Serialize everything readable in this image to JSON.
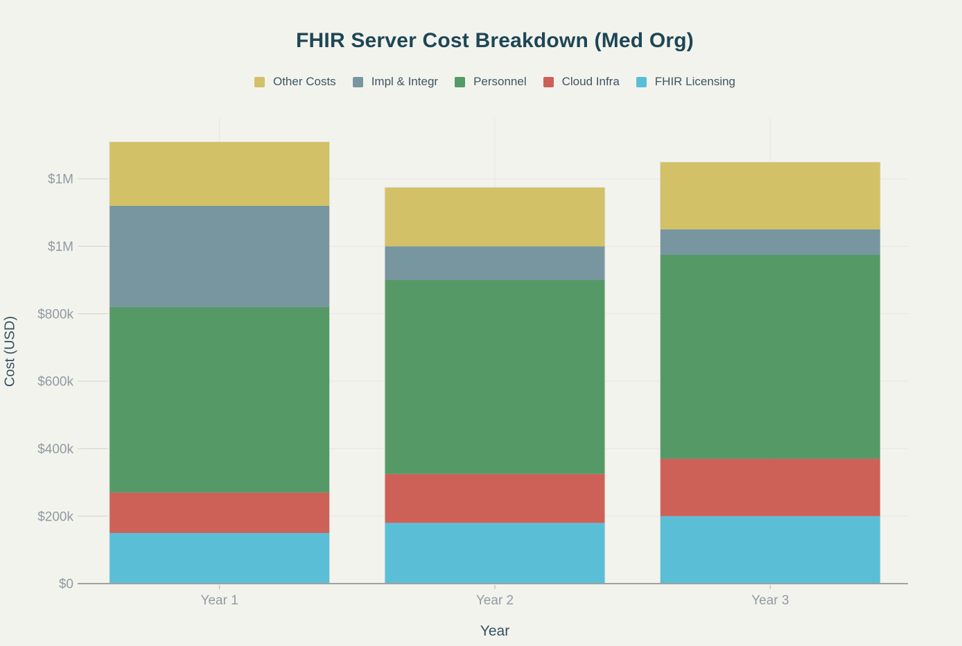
{
  "chart_data": {
    "type": "bar",
    "stacked": true,
    "title": "FHIR Server Cost Breakdown (Med Org)",
    "xlabel": "Year",
    "ylabel": "Cost (USD)",
    "categories": [
      "Year 1",
      "Year 2",
      "Year 3"
    ],
    "series": [
      {
        "name": "FHIR Licensing",
        "color": "#5abfd6",
        "values": [
          150000,
          180000,
          200000
        ]
      },
      {
        "name": "Cloud Infra",
        "color": "#cd6158",
        "values": [
          120000,
          145000,
          170000
        ]
      },
      {
        "name": "Personnel",
        "color": "#559967",
        "values": [
          550000,
          575000,
          605000
        ]
      },
      {
        "name": "Impl & Integr",
        "color": "#7896a0",
        "values": [
          300000,
          100000,
          75000
        ]
      },
      {
        "name": "Other Costs",
        "color": "#d2c166",
        "values": [
          190000,
          175000,
          200000
        ]
      }
    ],
    "stack_order": "bottom-to-top",
    "totals": [
      1310000,
      1175000,
      1250000
    ],
    "legend": {
      "position": "top",
      "order": [
        "Other Costs",
        "Impl & Integr",
        "Personnel",
        "Cloud Infra",
        "FHIR Licensing"
      ]
    },
    "y_axis": {
      "ticks": [
        {
          "value": 0,
          "label": "$0"
        },
        {
          "value": 200000,
          "label": "$200k"
        },
        {
          "value": 400000,
          "label": "$400k"
        },
        {
          "value": 600000,
          "label": "$600k"
        },
        {
          "value": 800000,
          "label": "$800k"
        },
        {
          "value": 1000000,
          "label": "$1M"
        },
        {
          "value": 1200000,
          "label": "$1M"
        }
      ],
      "ylim": [
        0,
        1380000
      ]
    },
    "grid": true
  },
  "colors": {
    "background": "#f3f3ee",
    "title_text": "#1e4754",
    "axis_title_text": "#33515f",
    "tick_label_text": "#919aa1",
    "legend_text": "#3c5561",
    "gridline": "#e6e6e1",
    "tick_mark": "#d2d2cd",
    "x_tick_mark": "#c6c6c1",
    "axis_line": "#a0a09c",
    "bar_outline": "#e3e3dd"
  }
}
